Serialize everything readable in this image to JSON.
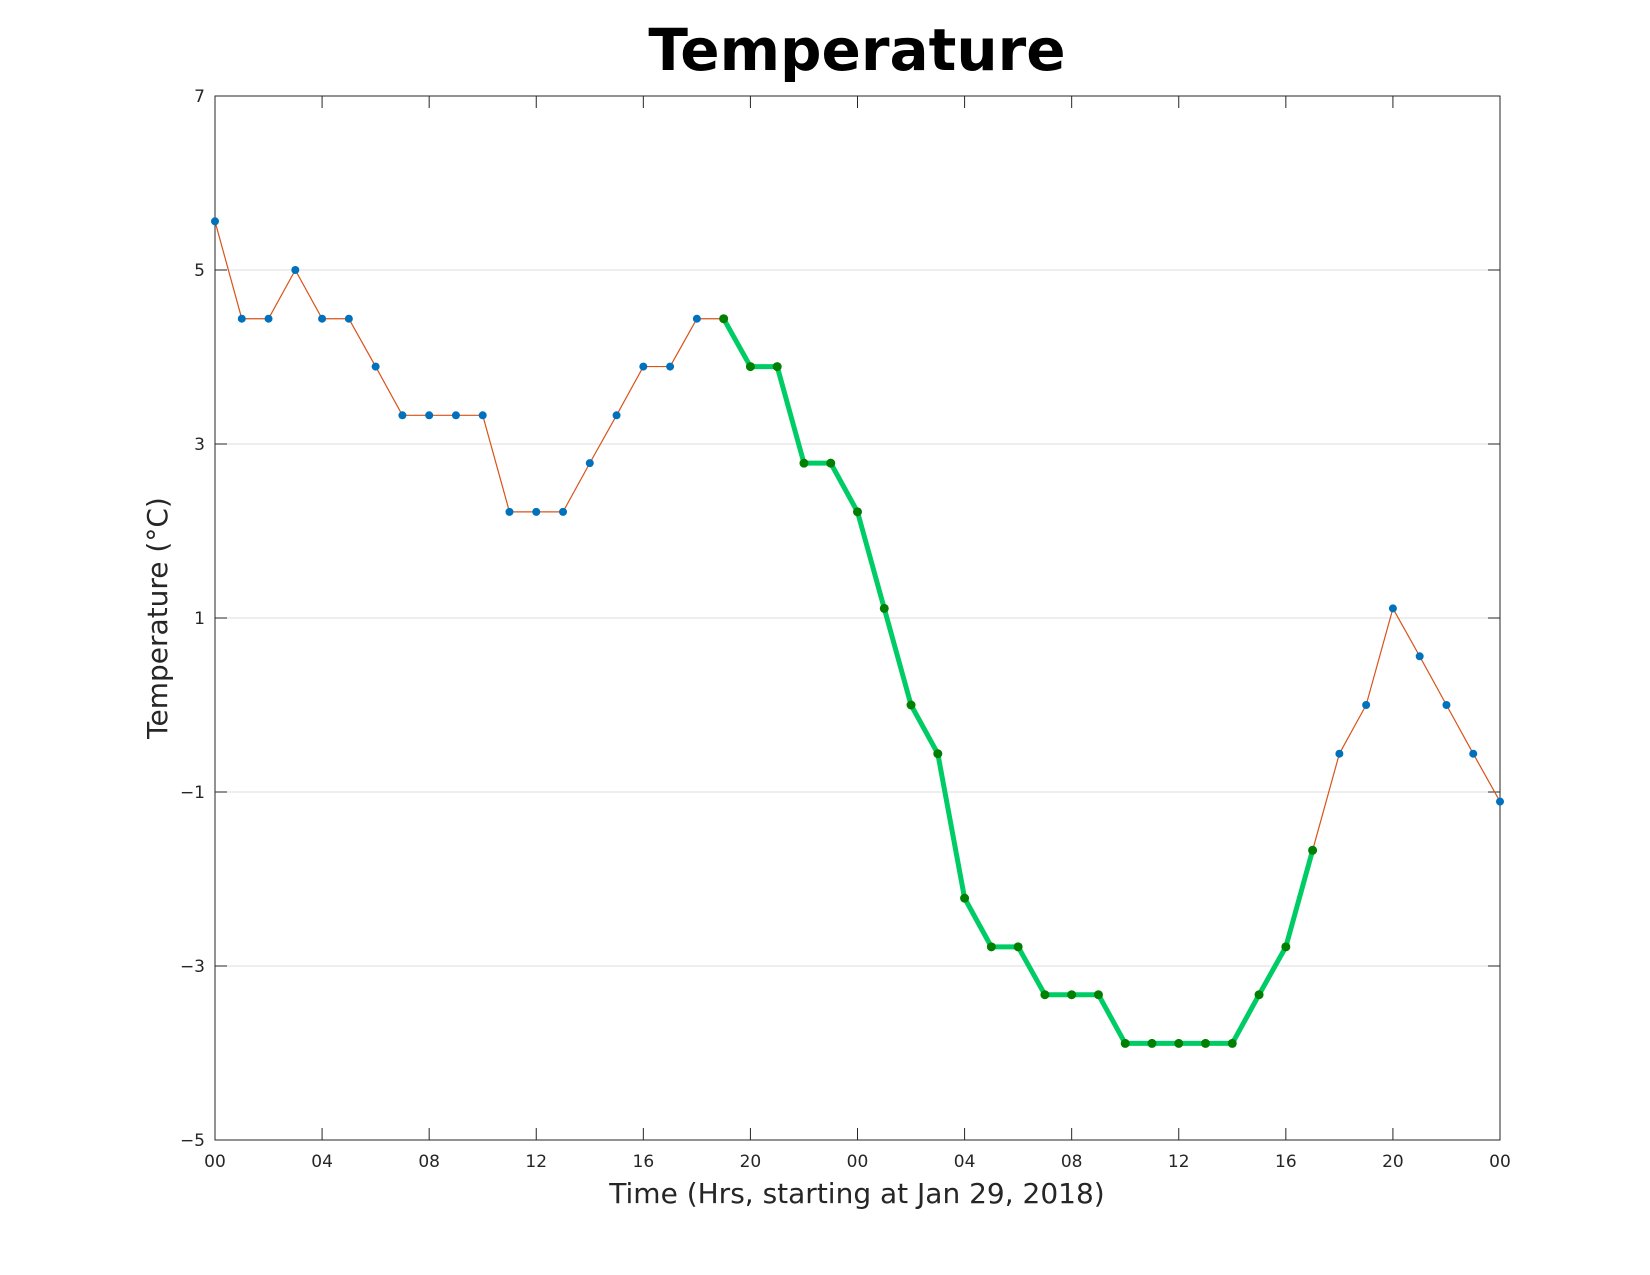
{
  "chart_data": {
    "type": "line",
    "title": "Temperature",
    "xlabel": "Time (Hrs, starting at Jan 29, 2018)",
    "ylabel": "Temperature (°C)",
    "xlim": [
      0,
      48
    ],
    "ylim": [
      -5,
      7
    ],
    "x_ticks": [
      0,
      4,
      8,
      12,
      16,
      20,
      24,
      28,
      32,
      36,
      40,
      44,
      48
    ],
    "x_tick_labels": [
      "00",
      "04",
      "08",
      "12",
      "16",
      "20",
      "00",
      "04",
      "08",
      "12",
      "16",
      "20",
      "00"
    ],
    "y_ticks": [
      -5,
      -3,
      -1,
      1,
      3,
      5,
      7
    ],
    "y_tick_labels": [
      "−5",
      "−3",
      "−1",
      "1",
      "3",
      "5",
      "7"
    ],
    "grid": "horizontal",
    "legend": "none",
    "colors": {
      "series_line": "#d95319",
      "series_marker": "#0072bd",
      "highlight_line": "#00cc66",
      "highlight_marker": "#008000",
      "axes": "#262626",
      "grid": "#dcdcdc"
    },
    "series": [
      {
        "x": [
          0,
          1,
          2,
          3,
          4,
          5,
          6,
          7,
          8,
          9,
          10,
          11,
          12,
          13,
          14,
          15,
          16,
          17,
          18,
          19,
          20,
          21,
          22,
          23,
          24,
          25,
          26,
          27,
          28,
          29,
          30,
          31,
          32,
          33,
          34,
          35,
          36,
          37,
          38,
          39,
          40,
          41,
          42,
          43,
          44,
          45,
          46,
          47,
          48
        ],
        "values": [
          5.56,
          4.44,
          4.44,
          5.0,
          4.44,
          4.44,
          3.89,
          3.33,
          3.33,
          3.33,
          3.33,
          2.22,
          2.22,
          2.22,
          2.78,
          3.33,
          3.89,
          3.89,
          4.44,
          4.44,
          3.89,
          3.89,
          2.78,
          2.78,
          2.22,
          1.11,
          0.0,
          -0.56,
          -2.22,
          -2.78,
          -2.78,
          -3.33,
          -3.33,
          -3.33,
          -3.89,
          -3.89,
          -3.89,
          -3.89,
          -3.89,
          -3.33,
          -2.78,
          -1.67,
          -0.56,
          0.0,
          1.11,
          0.56,
          0.0,
          -0.56,
          -1.11
        ]
      },
      {
        "x": [
          19,
          20,
          21,
          22,
          23,
          24,
          25,
          26,
          27,
          28,
          29,
          30,
          31,
          32,
          33,
          34,
          35,
          36,
          37,
          38,
          39,
          40,
          41
        ],
        "values": [
          4.44,
          3.89,
          3.89,
          2.78,
          2.78,
          2.22,
          1.11,
          0.0,
          -0.56,
          -2.22,
          -2.78,
          -2.78,
          -3.33,
          -3.33,
          -3.33,
          -3.89,
          -3.89,
          -3.89,
          -3.89,
          -3.89,
          -3.33,
          -2.78,
          -1.67
        ]
      }
    ]
  }
}
